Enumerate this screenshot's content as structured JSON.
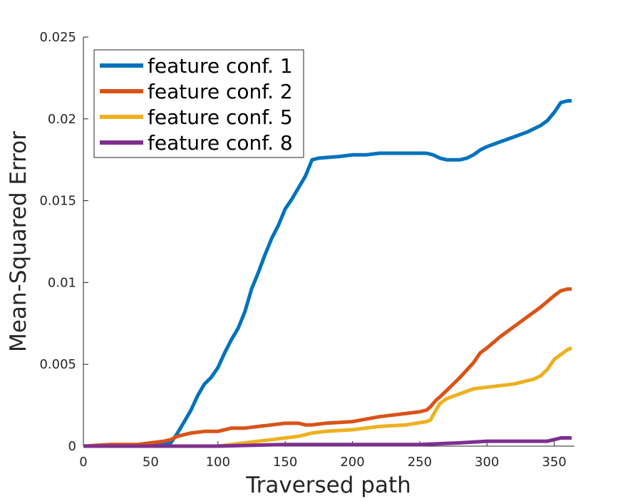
{
  "chart_data": {
    "type": "line",
    "xlabel": "Traversed path",
    "ylabel": "Mean-Squared Error",
    "xlim": [
      0,
      365
    ],
    "ylim": [
      0,
      0.025
    ],
    "xticks": [
      0,
      50,
      100,
      150,
      200,
      250,
      300,
      350
    ],
    "xtick_labels": [
      "0",
      "50",
      "100",
      "150",
      "200",
      "250",
      "300",
      "350"
    ],
    "yticks": [
      0,
      0.005,
      0.01,
      0.015,
      0.02,
      0.025
    ],
    "ytick_labels": [
      "0",
      "0.005",
      "0.01",
      "0.015",
      "0.02",
      "0.025"
    ],
    "grid": false,
    "legend_position": "top-left",
    "series": [
      {
        "name": "feature conf. 1",
        "color": "#0072BD",
        "x": [
          0,
          40,
          60,
          65,
          70,
          75,
          80,
          85,
          90,
          95,
          100,
          105,
          110,
          115,
          120,
          125,
          130,
          135,
          140,
          145,
          150,
          155,
          160,
          165,
          170,
          175,
          190,
          200,
          210,
          220,
          230,
          240,
          255,
          260,
          265,
          270,
          275,
          280,
          285,
          290,
          295,
          300,
          310,
          320,
          330,
          340,
          345,
          350,
          355,
          360,
          363
        ],
        "y": [
          0,
          0,
          0.0001,
          0.0002,
          0.0008,
          0.0015,
          0.0022,
          0.0031,
          0.0038,
          0.0042,
          0.0048,
          0.0057,
          0.0065,
          0.0072,
          0.0082,
          0.0096,
          0.0106,
          0.0117,
          0.0127,
          0.0135,
          0.0145,
          0.0151,
          0.0158,
          0.0165,
          0.0175,
          0.0176,
          0.0177,
          0.0178,
          0.0178,
          0.0179,
          0.0179,
          0.0179,
          0.0179,
          0.0178,
          0.0176,
          0.0175,
          0.0175,
          0.0175,
          0.0176,
          0.0178,
          0.0181,
          0.0183,
          0.0186,
          0.0189,
          0.0192,
          0.0196,
          0.0199,
          0.0204,
          0.021,
          0.0211,
          0.0211
        ]
      },
      {
        "name": "feature conf. 2",
        "color": "#D95319",
        "x": [
          0,
          20,
          40,
          60,
          65,
          70,
          80,
          90,
          100,
          110,
          120,
          130,
          140,
          150,
          160,
          165,
          170,
          180,
          200,
          220,
          240,
          250,
          255,
          258,
          262,
          265,
          270,
          280,
          290,
          295,
          300,
          310,
          320,
          330,
          335,
          340,
          350,
          355,
          360,
          363
        ],
        "y": [
          0,
          0.0001,
          0.0001,
          0.0003,
          0.0004,
          0.0006,
          0.0008,
          0.0009,
          0.0009,
          0.0011,
          0.0011,
          0.0012,
          0.0013,
          0.0014,
          0.0014,
          0.0013,
          0.0013,
          0.0014,
          0.0015,
          0.0018,
          0.002,
          0.0021,
          0.0022,
          0.0024,
          0.0028,
          0.003,
          0.0034,
          0.0042,
          0.0051,
          0.0057,
          0.006,
          0.0067,
          0.0073,
          0.0079,
          0.0082,
          0.0085,
          0.0092,
          0.0095,
          0.0096,
          0.0096
        ]
      },
      {
        "name": "feature conf. 5",
        "color": "#EDB120",
        "x": [
          0,
          50,
          100,
          110,
          120,
          130,
          140,
          150,
          160,
          165,
          170,
          180,
          200,
          220,
          240,
          255,
          258,
          262,
          265,
          270,
          280,
          290,
          300,
          320,
          330,
          335,
          340,
          345,
          350,
          355,
          360,
          363
        ],
        "y": [
          0,
          0,
          0,
          0.0001,
          0.0002,
          0.0003,
          0.0004,
          0.0005,
          0.0006,
          0.0007,
          0.0008,
          0.0009,
          0.001,
          0.0012,
          0.0013,
          0.0015,
          0.0016,
          0.0022,
          0.0026,
          0.0029,
          0.0032,
          0.0035,
          0.0036,
          0.0038,
          0.004,
          0.0041,
          0.0043,
          0.0047,
          0.0053,
          0.0056,
          0.0059,
          0.006
        ]
      },
      {
        "name": "feature conf. 8",
        "color": "#7E2F8E",
        "x": [
          0,
          100,
          150,
          200,
          250,
          280,
          300,
          320,
          340,
          345,
          350,
          355,
          360,
          363
        ],
        "y": [
          0,
          0,
          0.0001,
          0.0001,
          0.0001,
          0.0002,
          0.0003,
          0.0003,
          0.0003,
          0.0003,
          0.0004,
          0.0005,
          0.0005,
          0.0005
        ]
      }
    ]
  }
}
